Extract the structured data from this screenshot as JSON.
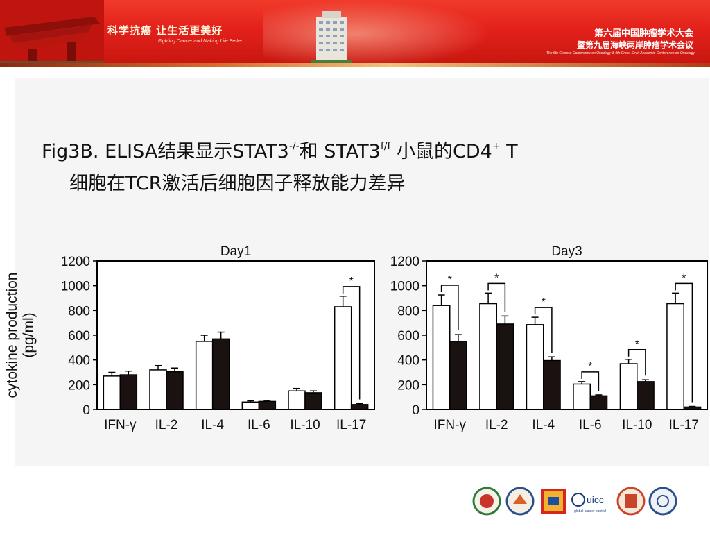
{
  "banner": {
    "slogan_cn": "科学抗癌 让生活更美好",
    "slogan_en": "Fighting Cancer and Making Life Better",
    "conference_line1": "第六届中国肿瘤学术大会",
    "conference_line2": "暨第九届海峡两岸肿瘤学术会议",
    "conference_en": "The 6th Chinese Conference on Oncology & 9th Cross-Strait Academic Conference on Oncology"
  },
  "slide": {
    "title_prefix": "Fig3B. ELISA结果显示STAT3",
    "title_sup1": "-/-",
    "title_mid": "和 STAT3",
    "title_sup2": "f/f",
    "title_mid2": " 小鼠的CD4",
    "title_sup3": "+",
    "title_end": " T",
    "title_line2": "细胞在TCR激活后细胞因子释放能力差异"
  },
  "colors": {
    "wild_type_bar": "#ffffff",
    "knockout_bar": "#1a1210",
    "axis": "#000000"
  },
  "chart_data": [
    {
      "type": "bar",
      "title": "Day1",
      "ylabel": "cytokine production (pg/ml)",
      "categories": [
        "IFN-γ",
        "IL-2",
        "IL-4",
        "IL-6",
        "IL-10",
        "IL-17"
      ],
      "yticks": [
        "0",
        "200",
        "400",
        "600",
        "800",
        "1000",
        "1200"
      ],
      "ylim": [
        0,
        1200
      ],
      "series": [
        {
          "values": [
            270,
            320,
            550,
            60,
            150,
            830
          ],
          "errors": [
            30,
            35,
            50,
            10,
            20,
            85
          ]
        },
        {
          "values": [
            280,
            305,
            570,
            65,
            135,
            40
          ],
          "errors": [
            30,
            30,
            55,
            8,
            15,
            8
          ]
        }
      ],
      "significance": [
        {
          "category": "IL-17",
          "label": "*"
        }
      ]
    },
    {
      "type": "bar",
      "title": "Day3",
      "ylabel": "",
      "categories": [
        "IFN-γ",
        "IL-2",
        "IL-4",
        "IL-6",
        "IL-10",
        "IL-17"
      ],
      "yticks": [
        "0",
        "200",
        "400",
        "600",
        "800",
        "1000",
        "1200"
      ],
      "ylim": [
        0,
        1200
      ],
      "series": [
        {
          "values": [
            840,
            855,
            685,
            205,
            370,
            855
          ],
          "errors": [
            85,
            85,
            60,
            20,
            35,
            85
          ]
        },
        {
          "values": [
            550,
            690,
            395,
            110,
            225,
            20
          ],
          "errors": [
            55,
            65,
            30,
            8,
            15,
            5
          ]
        }
      ],
      "significance": [
        {
          "category": "IFN-γ",
          "label": "*"
        },
        {
          "category": "IL-2",
          "label": "*"
        },
        {
          "category": "IL-4",
          "label": "*"
        },
        {
          "category": "IL-6",
          "label": "*"
        },
        {
          "category": "IL-10",
          "label": "*"
        },
        {
          "category": "IL-17",
          "label": "*"
        }
      ]
    }
  ]
}
